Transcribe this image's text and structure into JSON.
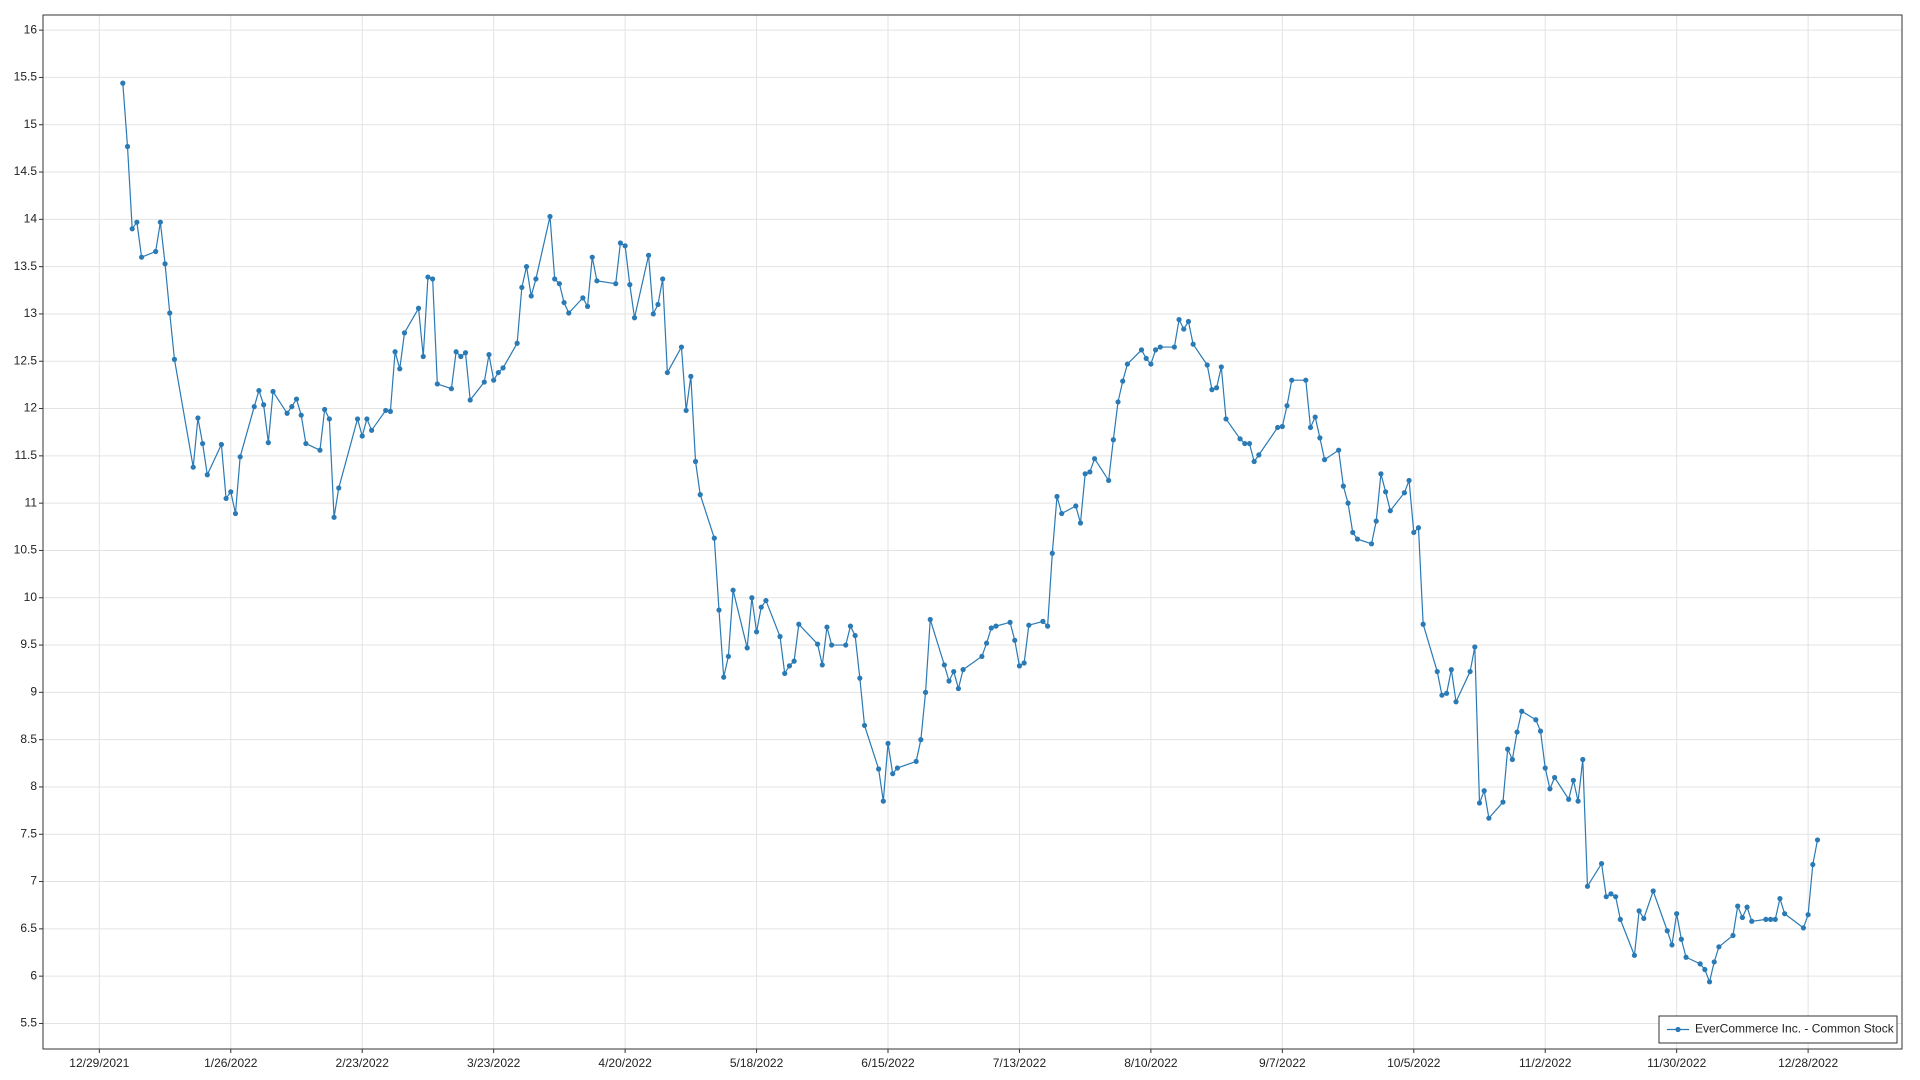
{
  "chart_data": {
    "type": "line",
    "x": [
      "2022-01-03",
      "2022-01-04",
      "2022-01-05",
      "2022-01-06",
      "2022-01-07",
      "2022-01-10",
      "2022-01-11",
      "2022-01-12",
      "2022-01-13",
      "2022-01-14",
      "2022-01-18",
      "2022-01-19",
      "2022-01-20",
      "2022-01-21",
      "2022-01-24",
      "2022-01-25",
      "2022-01-26",
      "2022-01-27",
      "2022-01-28",
      "2022-01-31",
      "2022-02-01",
      "2022-02-02",
      "2022-02-03",
      "2022-02-04",
      "2022-02-07",
      "2022-02-08",
      "2022-02-09",
      "2022-02-10",
      "2022-02-11",
      "2022-02-14",
      "2022-02-15",
      "2022-02-16",
      "2022-02-17",
      "2022-02-18",
      "2022-02-22",
      "2022-02-23",
      "2022-02-24",
      "2022-02-25",
      "2022-02-28",
      "2022-03-01",
      "2022-03-02",
      "2022-03-03",
      "2022-03-04",
      "2022-03-07",
      "2022-03-08",
      "2022-03-09",
      "2022-03-10",
      "2022-03-11",
      "2022-03-14",
      "2022-03-15",
      "2022-03-16",
      "2022-03-17",
      "2022-03-18",
      "2022-03-21",
      "2022-03-22",
      "2022-03-23",
      "2022-03-24",
      "2022-03-25",
      "2022-03-28",
      "2022-03-29",
      "2022-03-30",
      "2022-03-31",
      "2022-04-01",
      "2022-04-04",
      "2022-04-05",
      "2022-04-06",
      "2022-04-07",
      "2022-04-08",
      "2022-04-11",
      "2022-04-12",
      "2022-04-13",
      "2022-04-14",
      "2022-04-18",
      "2022-04-19",
      "2022-04-20",
      "2022-04-21",
      "2022-04-22",
      "2022-04-25",
      "2022-04-26",
      "2022-04-27",
      "2022-04-28",
      "2022-04-29",
      "2022-05-02",
      "2022-05-03",
      "2022-05-04",
      "2022-05-05",
      "2022-05-06",
      "2022-05-09",
      "2022-05-10",
      "2022-05-11",
      "2022-05-12",
      "2022-05-13",
      "2022-05-16",
      "2022-05-17",
      "2022-05-18",
      "2022-05-19",
      "2022-05-20",
      "2022-05-23",
      "2022-05-24",
      "2022-05-25",
      "2022-05-26",
      "2022-05-27",
      "2022-05-31",
      "2022-06-01",
      "2022-06-02",
      "2022-06-03",
      "2022-06-06",
      "2022-06-07",
      "2022-06-08",
      "2022-06-09",
      "2022-06-10",
      "2022-06-13",
      "2022-06-14",
      "2022-06-15",
      "2022-06-16",
      "2022-06-17",
      "2022-06-21",
      "2022-06-22",
      "2022-06-23",
      "2022-06-24",
      "2022-06-27",
      "2022-06-28",
      "2022-06-29",
      "2022-06-30",
      "2022-07-01",
      "2022-07-05",
      "2022-07-06",
      "2022-07-07",
      "2022-07-08",
      "2022-07-11",
      "2022-07-12",
      "2022-07-13",
      "2022-07-14",
      "2022-07-15",
      "2022-07-18",
      "2022-07-19",
      "2022-07-20",
      "2022-07-21",
      "2022-07-22",
      "2022-07-25",
      "2022-07-26",
      "2022-07-27",
      "2022-07-28",
      "2022-07-29",
      "2022-08-01",
      "2022-08-02",
      "2022-08-03",
      "2022-08-04",
      "2022-08-05",
      "2022-08-08",
      "2022-08-09",
      "2022-08-10",
      "2022-08-11",
      "2022-08-12",
      "2022-08-15",
      "2022-08-16",
      "2022-08-17",
      "2022-08-18",
      "2022-08-19",
      "2022-08-22",
      "2022-08-23",
      "2022-08-24",
      "2022-08-25",
      "2022-08-26",
      "2022-08-29",
      "2022-08-30",
      "2022-08-31",
      "2022-09-01",
      "2022-09-02",
      "2022-09-06",
      "2022-09-07",
      "2022-09-08",
      "2022-09-09",
      "2022-09-12",
      "2022-09-13",
      "2022-09-14",
      "2022-09-15",
      "2022-09-16",
      "2022-09-19",
      "2022-09-20",
      "2022-09-21",
      "2022-09-22",
      "2022-09-23",
      "2022-09-26",
      "2022-09-27",
      "2022-09-28",
      "2022-09-29",
      "2022-09-30",
      "2022-10-03",
      "2022-10-04",
      "2022-10-05",
      "2022-10-06",
      "2022-10-07",
      "2022-10-10",
      "2022-10-11",
      "2022-10-12",
      "2022-10-13",
      "2022-10-14",
      "2022-10-17",
      "2022-10-18",
      "2022-10-19",
      "2022-10-20",
      "2022-10-21",
      "2022-10-24",
      "2022-10-25",
      "2022-10-26",
      "2022-10-27",
      "2022-10-28",
      "2022-10-31",
      "2022-11-01",
      "2022-11-02",
      "2022-11-03",
      "2022-11-04",
      "2022-11-07",
      "2022-11-08",
      "2022-11-09",
      "2022-11-10",
      "2022-11-11",
      "2022-11-14",
      "2022-11-15",
      "2022-11-16",
      "2022-11-17",
      "2022-11-18",
      "2022-11-21",
      "2022-11-22",
      "2022-11-23",
      "2022-11-25",
      "2022-11-28",
      "2022-11-29",
      "2022-11-30",
      "2022-12-01",
      "2022-12-02",
      "2022-12-05",
      "2022-12-06",
      "2022-12-07",
      "2022-12-08",
      "2022-12-09",
      "2022-12-12",
      "2022-12-13",
      "2022-12-14",
      "2022-12-15",
      "2022-12-16",
      "2022-12-19",
      "2022-12-20",
      "2022-12-21",
      "2022-12-22",
      "2022-12-23",
      "2022-12-27",
      "2022-12-28",
      "2022-12-29",
      "2022-12-30"
    ],
    "series": [
      {
        "name": "EverCommerce Inc. - Common Stock",
        "color": "#2a7ab5",
        "values": [
          15.44,
          14.77,
          13.9,
          13.97,
          13.6,
          13.66,
          13.97,
          13.53,
          13.01,
          12.52,
          11.38,
          11.9,
          11.63,
          11.3,
          11.62,
          11.05,
          11.12,
          10.89,
          11.49,
          12.02,
          12.19,
          12.04,
          11.64,
          12.18,
          11.95,
          12.02,
          12.1,
          11.93,
          11.63,
          11.56,
          11.99,
          11.89,
          10.85,
          11.16,
          11.89,
          11.71,
          11.89,
          11.77,
          11.98,
          11.97,
          12.6,
          12.42,
          12.8,
          13.06,
          12.55,
          13.39,
          13.37,
          12.26,
          12.21,
          12.6,
          12.55,
          12.59,
          12.09,
          12.28,
          12.57,
          12.3,
          12.38,
          12.43,
          12.69,
          13.28,
          13.5,
          13.19,
          13.37,
          14.03,
          13.37,
          13.32,
          13.12,
          13.01,
          13.17,
          13.08,
          13.6,
          13.35,
          13.32,
          13.75,
          13.72,
          13.31,
          12.96,
          13.62,
          13.0,
          13.1,
          13.37,
          12.38,
          12.65,
          11.98,
          12.34,
          11.44,
          11.09,
          10.63,
          9.87,
          9.16,
          9.38,
          10.08,
          9.47,
          10.0,
          9.64,
          9.9,
          9.97,
          9.59,
          9.2,
          9.28,
          9.33,
          9.72,
          9.51,
          9.29,
          9.69,
          9.5,
          9.5,
          9.7,
          9.6,
          9.15,
          8.65,
          8.19,
          7.85,
          8.46,
          8.14,
          8.2,
          8.27,
          8.5,
          9.0,
          9.77,
          9.29,
          9.12,
          9.22,
          9.04,
          9.24,
          9.38,
          9.52,
          9.68,
          9.7,
          9.74,
          9.55,
          9.28,
          9.31,
          9.71,
          9.75,
          9.7,
          10.47,
          11.07,
          10.89,
          10.97,
          10.79,
          11.31,
          11.33,
          11.47,
          11.24,
          11.67,
          12.07,
          12.29,
          12.47,
          12.62,
          12.53,
          12.47,
          12.62,
          12.65,
          12.65,
          12.94,
          12.84,
          12.92,
          12.68,
          12.46,
          12.2,
          12.22,
          12.44,
          11.89,
          11.68,
          11.63,
          11.63,
          11.44,
          11.51,
          11.8,
          11.81,
          12.03,
          12.3,
          12.3,
          11.8,
          11.91,
          11.69,
          11.46,
          11.56,
          11.18,
          11.0,
          10.69,
          10.62,
          10.57,
          10.81,
          11.31,
          11.12,
          10.92,
          11.11,
          11.24,
          10.69,
          10.74,
          9.72,
          9.22,
          8.97,
          8.99,
          9.24,
          8.9,
          9.22,
          9.48,
          7.83,
          7.96,
          7.67,
          7.84,
          8.4,
          8.29,
          8.58,
          8.8,
          8.71,
          8.59,
          8.2,
          7.98,
          8.1,
          7.87,
          8.07,
          7.85,
          8.29,
          6.95,
          7.19,
          6.84,
          6.87,
          6.84,
          6.6,
          6.22,
          6.69,
          6.61,
          6.9,
          6.48,
          6.33,
          6.66,
          6.39,
          6.2,
          6.13,
          6.07,
          5.94,
          6.15,
          6.31,
          6.43,
          6.74,
          6.62,
          6.73,
          6.58,
          6.6,
          6.6,
          6.6,
          6.82,
          6.66,
          6.51,
          6.65,
          7.18,
          7.44
        ]
      }
    ],
    "xlim": [
      "2021-12-17",
      "2023-01-17"
    ],
    "xticks": [
      {
        "value": "2021-12-29",
        "label": "12/29/2021"
      },
      {
        "value": "2022-01-26",
        "label": "1/26/2022"
      },
      {
        "value": "2022-02-23",
        "label": "2/23/2022"
      },
      {
        "value": "2022-03-23",
        "label": "3/23/2022"
      },
      {
        "value": "2022-04-20",
        "label": "4/20/2022"
      },
      {
        "value": "2022-05-18",
        "label": "5/18/2022"
      },
      {
        "value": "2022-06-15",
        "label": "6/15/2022"
      },
      {
        "value": "2022-07-13",
        "label": "7/13/2022"
      },
      {
        "value": "2022-08-10",
        "label": "8/10/2022"
      },
      {
        "value": "2022-09-07",
        "label": "9/7/2022"
      },
      {
        "value": "2022-10-05",
        "label": "10/5/2022"
      },
      {
        "value": "2022-11-02",
        "label": "11/2/2022"
      },
      {
        "value": "2022-11-30",
        "label": "11/30/2022"
      },
      {
        "value": "2022-12-28",
        "label": "12/28/2022"
      }
    ],
    "ylim": [
      5.23,
      16.16
    ],
    "yticks": [
      5.5,
      6,
      6.5,
      7,
      7.5,
      8,
      8.5,
      9,
      9.5,
      10,
      10.5,
      11,
      11.5,
      12,
      12.5,
      13,
      13.5,
      14,
      14.5,
      15,
      15.5,
      16
    ],
    "grid": true,
    "legend": "lower right"
  }
}
